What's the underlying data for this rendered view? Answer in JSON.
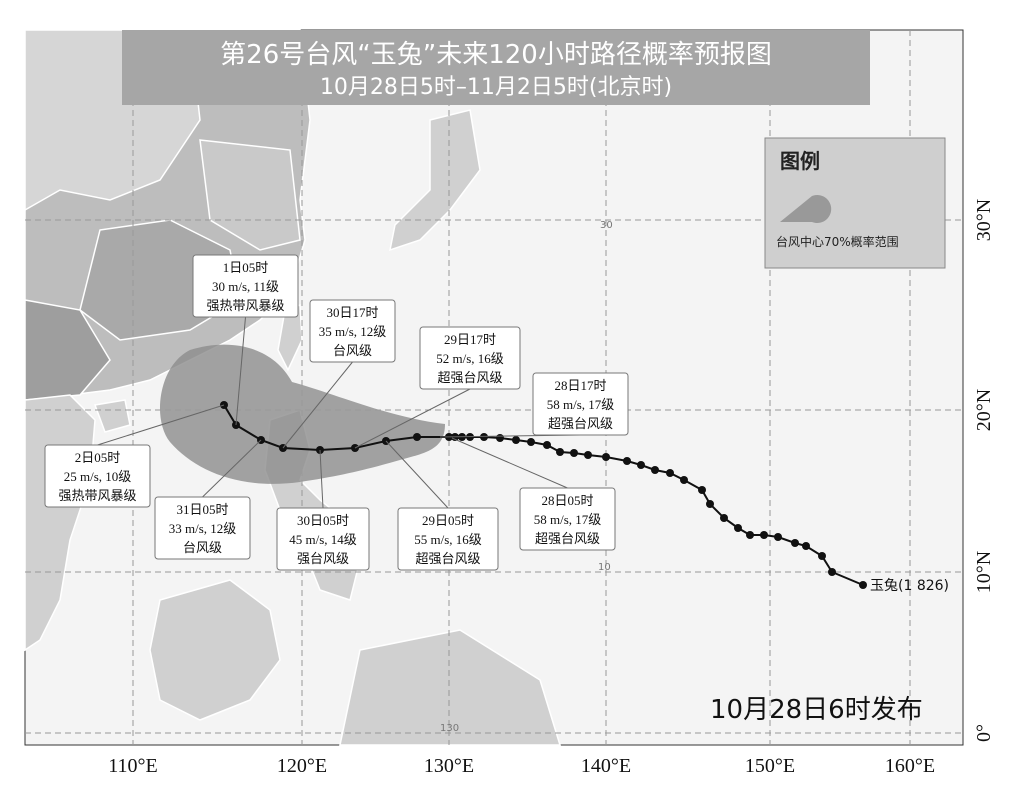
{
  "header": {
    "title": "第26号台风“玉兔”未来120小时路径概率预报图",
    "subtitle": "10月28日5时–11月2日5时(北京时)"
  },
  "legend": {
    "title": "图例",
    "label": "台风中心70%概率范围"
  },
  "axes": {
    "longitude": [
      "110°E",
      "120°E",
      "130°E",
      "140°E",
      "150°E",
      "160°E"
    ],
    "latitude": [
      "0°",
      "10°N",
      "20°N",
      "30°N"
    ]
  },
  "grid_labels": [
    "30",
    "10",
    "130"
  ],
  "annotations": [
    {
      "time": "1日05时",
      "wind": "30 m/s, 11级",
      "level": "强热带风暴级"
    },
    {
      "time": "30日17时",
      "wind": "35 m/s, 12级",
      "level": "台风级"
    },
    {
      "time": "29日17时",
      "wind": "52 m/s, 16级",
      "level": "超强台风级"
    },
    {
      "time": "28日17时",
      "wind": "58 m/s, 17级",
      "level": "超强台风级"
    },
    {
      "time": "2日05时",
      "wind": "25 m/s, 10级",
      "level": "强热带风暴级"
    },
    {
      "time": "31日05时",
      "wind": "33 m/s, 12级",
      "level": "台风级"
    },
    {
      "time": "30日05时",
      "wind": "45 m/s, 14级",
      "level": "强台风级"
    },
    {
      "time": "29日05时",
      "wind": "55 m/s, 16级",
      "level": "超强台风级"
    },
    {
      "time": "28日05时",
      "wind": "58 m/s, 17级",
      "level": "超强台风级"
    }
  ],
  "typhoon_label": "玉兔(1 826)",
  "release": "10月28日6时发布"
}
